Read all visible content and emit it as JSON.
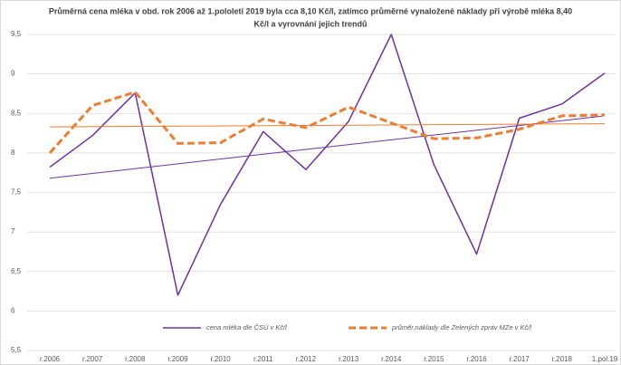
{
  "chart_data": {
    "type": "line",
    "title": [
      "Průměrná cena mléka v obd. rok 2006 až  1.pololetí 2019 byla cca 8,10 Kč/l, zatímco průměrné vynaložené náklady při výrobě mléka 8,40",
      "Kč/l a vyrovnání jejich trendů"
    ],
    "categories": [
      "r.2006",
      "r.2007",
      "r.2008",
      "r.2009",
      "r.2010",
      "r.2011",
      "r.2012",
      "r.2013",
      "r.2014",
      "r.2015",
      "r.2016",
      "r.2017",
      "r.2018",
      "1.pol.19"
    ],
    "series": [
      {
        "name": "cena mléka dle ČSÚ v Kč/l",
        "color": "#7030a0",
        "dashed": false,
        "values": [
          7.82,
          8.22,
          8.76,
          6.2,
          7.35,
          8.27,
          7.79,
          8.4,
          9.5,
          7.85,
          6.72,
          8.44,
          8.62,
          9.01
        ],
        "trend": [
          7.68,
          8.47
        ]
      },
      {
        "name": "průměr.náklady dle Zelených zpráv MZe v Kč/l",
        "color": "#ed7d31",
        "dashed": true,
        "values": [
          8.0,
          8.6,
          8.77,
          8.12,
          8.13,
          8.43,
          8.32,
          8.58,
          8.38,
          8.18,
          8.19,
          8.3,
          8.47,
          8.48
        ],
        "trend": [
          8.33,
          8.37
        ]
      }
    ],
    "ylim": [
      5.5,
      9.5
    ],
    "yticks": [
      {
        "value": 5.5,
        "label": "5,5"
      },
      6,
      {
        "value": 6.5,
        "label": "6,5"
      },
      7,
      {
        "value": 7.5,
        "label": "7,5"
      },
      8,
      {
        "value": 8.5,
        "label": "8,5"
      },
      9,
      {
        "value": 9.5,
        "label": "9,5"
      }
    ],
    "grid": true,
    "legend": "bottom"
  }
}
